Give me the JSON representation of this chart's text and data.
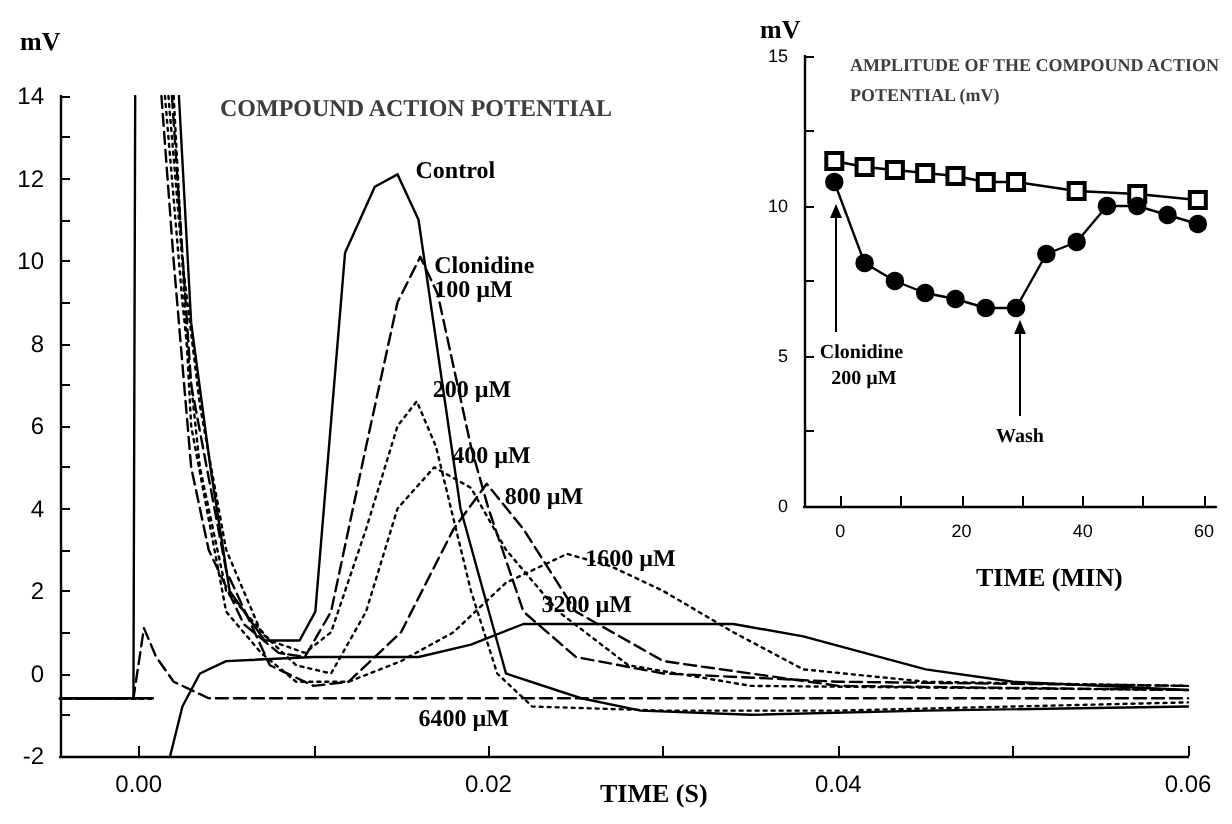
{
  "chart_data": [
    {
      "type": "line",
      "title": "COMPOUND ACTION POTENTIAL",
      "xlabel": "TIME (S)",
      "ylabel": "mV",
      "marker": "none",
      "grid": false,
      "xlim": [
        -0.0045,
        0.06
      ],
      "xticks": [
        {
          "value": 0,
          "label": "0.00"
        },
        {
          "value": 0.01,
          "label": null
        },
        0.02,
        {
          "value": 0.03,
          "label": null
        },
        0.04,
        {
          "value": 0.05,
          "label": null
        },
        0.06
      ],
      "ylim": [
        -2,
        14
      ],
      "yticks": [
        -2,
        {
          "value": -1,
          "label": null
        },
        0,
        {
          "value": 1,
          "label": null
        },
        2,
        {
          "value": 3,
          "label": null
        },
        4,
        {
          "value": 5,
          "label": null
        },
        6,
        {
          "value": 7,
          "label": null
        },
        8,
        {
          "value": 9,
          "label": null
        },
        10,
        {
          "value": 11,
          "label": null
        },
        12,
        {
          "value": 13,
          "label": null
        },
        14
      ],
      "series": [
        {
          "name": "Control",
          "color": "#000000",
          "line_style": "solid",
          "x": [
            -0.0045,
            -0.0003,
            -0.0002,
            0.0002,
            0.0023,
            0.003,
            0.0041,
            0.0052,
            0.0072,
            0.0092,
            0.0101,
            0.0118,
            0.0135,
            0.0148,
            0.016,
            0.0184,
            0.021,
            0.0253,
            0.0287,
            0.035,
            0.045,
            0.06
          ],
          "values": [
            -0.6,
            -0.6,
            14,
            null,
            14,
            8.5,
            5,
            2,
            0.8,
            0.8,
            1.5,
            10.2,
            11.8,
            12.1,
            11,
            4,
            0,
            -0.6,
            -0.9,
            -1,
            -0.9,
            -0.8
          ]
        },
        {
          "name": "Clonidine 100 µM",
          "color": "#000000",
          "line_style": "dashed",
          "x": [
            0.0013,
            0.002,
            0.003,
            0.004,
            0.006,
            0.008,
            0.0095,
            0.011,
            0.013,
            0.0148,
            0.0161,
            0.0171,
            0.019,
            0.02,
            0.022,
            0.025,
            0.03,
            0.04,
            0.06
          ],
          "values": [
            14,
            10,
            5,
            3,
            1.2,
            0.5,
            0.4,
            1.5,
            5.5,
            9,
            10.1,
            9.2,
            5.5,
            4,
            1.5,
            0.4,
            0,
            -0.2,
            -0.3
          ]
        },
        {
          "name": "200 µM",
          "color": "#000000",
          "line_style": "dotted",
          "x": [
            -0.0045,
            0.0008,
            0.0009,
            0.0015,
            0.0025,
            0.0035,
            0.005,
            0.0075,
            0.0095,
            0.011,
            0.013,
            0.0148,
            0.0159,
            0.017,
            0.019,
            0.0205,
            0.0225,
            0.03,
            0.04,
            0.06
          ],
          "values": [
            -0.6,
            -0.6,
            null,
            14,
            9,
            5,
            2,
            0.8,
            0.5,
            1,
            3.5,
            6,
            6.6,
            5.5,
            2,
            0,
            -0.8,
            -0.9,
            -0.9,
            -0.7
          ]
        },
        {
          "name": "400 µM",
          "color": "#000000",
          "line_style": "dotted",
          "x": [
            -0.0045,
            0.0008,
            0.0009,
            0.0017,
            0.0025,
            0.0035,
            0.005,
            0.007,
            0.009,
            0.011,
            0.013,
            0.0148,
            0.0169,
            0.019,
            0.021,
            0.024,
            0.028,
            0.035,
            0.06
          ],
          "values": [
            -0.6,
            -0.6,
            null,
            14,
            10,
            6.5,
            3,
            1,
            0.2,
            0,
            1.5,
            4,
            5,
            4.5,
            3,
            1.5,
            0.2,
            -0.3,
            -0.4
          ]
        },
        {
          "name": "800 µM",
          "color": "#000000",
          "line_style": "dashed",
          "x": [
            -0.0045,
            0.0008,
            0.0009,
            0.0019,
            0.003,
            0.005,
            0.0075,
            0.01,
            0.012,
            0.015,
            0.018,
            0.0199,
            0.022,
            0.025,
            0.03,
            0.04,
            0.06
          ],
          "values": [
            -0.6,
            -0.6,
            null,
            14,
            7,
            2.5,
            0.2,
            -0.3,
            -0.2,
            1,
            3.5,
            4.6,
            3.5,
            1.5,
            0.3,
            -0.3,
            -0.4
          ]
        },
        {
          "name": "1600 µM",
          "color": "#000000",
          "line_style": "dotted",
          "x": [
            -0.0045,
            0.0008,
            0.0009,
            0.002,
            0.003,
            0.005,
            0.007,
            0.009,
            0.012,
            0.015,
            0.018,
            0.021,
            0.0245,
            0.027,
            0.03,
            0.034,
            0.038,
            0.045,
            0.06
          ],
          "values": [
            -0.6,
            -0.6,
            null,
            14,
            6,
            1.5,
            0.5,
            -0.2,
            -0.2,
            0.3,
            1,
            2.2,
            2.9,
            2.6,
            2,
            1,
            0.1,
            -0.2,
            -0.3
          ]
        },
        {
          "name": "3200 µM",
          "color": "#000000",
          "line_style": "solid",
          "x": [
            -0.0045,
            0.0008,
            0.0009,
            0.0018,
            0.0025,
            0.0035,
            0.005,
            0.01,
            0.016,
            0.019,
            0.022,
            0.028,
            0.034,
            0.038,
            0.045,
            0.05,
            0.06
          ],
          "values": [
            -0.6,
            -0.6,
            null,
            -2,
            -0.8,
            0,
            0.3,
            0.4,
            0.4,
            0.7,
            1.2,
            1.2,
            1.2,
            0.9,
            0.1,
            -0.2,
            -0.4
          ]
        },
        {
          "name": "6400 µM",
          "color": "#000000",
          "line_style": "dashed",
          "x": [
            -0.0045,
            -0.0003,
            0.0003,
            0.001,
            0.002,
            0.004,
            0.02,
            0.03,
            0.06
          ],
          "values": [
            -0.6,
            -0.6,
            1.1,
            0.4,
            -0.2,
            -0.6,
            -0.6,
            -0.6,
            -0.6
          ]
        }
      ]
    },
    {
      "type": "line",
      "title": "AMPLITUDE OF THE COMPOUND ACTION POTENTIAL (mV)",
      "xlabel": "TIME (MIN)",
      "ylabel": "mV",
      "grid": false,
      "xlim": [
        -6,
        62
      ],
      "xticks": [
        0,
        {
          "value": 10,
          "label": null
        },
        20,
        {
          "value": 30,
          "label": null
        },
        40,
        {
          "value": 50,
          "label": null
        },
        60
      ],
      "ylim": [
        0,
        15
      ],
      "yticks": [
        0,
        {
          "value": 2.5,
          "label": null
        },
        5,
        {
          "value": 7.5,
          "label": null
        },
        10,
        {
          "value": 12.5,
          "label": null
        },
        15
      ],
      "annotations": [
        "Clonidine 200 µM",
        "Wash"
      ],
      "series": [
        {
          "color": "#000000",
          "marker": "square",
          "line_style": "solid",
          "x": [
            -1,
            4,
            9,
            14,
            19,
            24,
            29,
            39,
            49,
            59
          ],
          "values": [
            11.5,
            11.3,
            11.2,
            11.1,
            11.0,
            10.8,
            10.8,
            10.5,
            10.4,
            10.2
          ]
        },
        {
          "color": "#000000",
          "marker": "circle",
          "line_style": "solid",
          "x": [
            -1,
            4,
            9,
            14,
            19,
            24,
            29,
            34,
            39,
            44,
            49,
            54,
            59
          ],
          "values": [
            10.8,
            8.1,
            7.5,
            7.1,
            6.9,
            6.6,
            6.6,
            8.4,
            8.8,
            10.0,
            10.0,
            9.7,
            9.4
          ]
        }
      ]
    }
  ]
}
